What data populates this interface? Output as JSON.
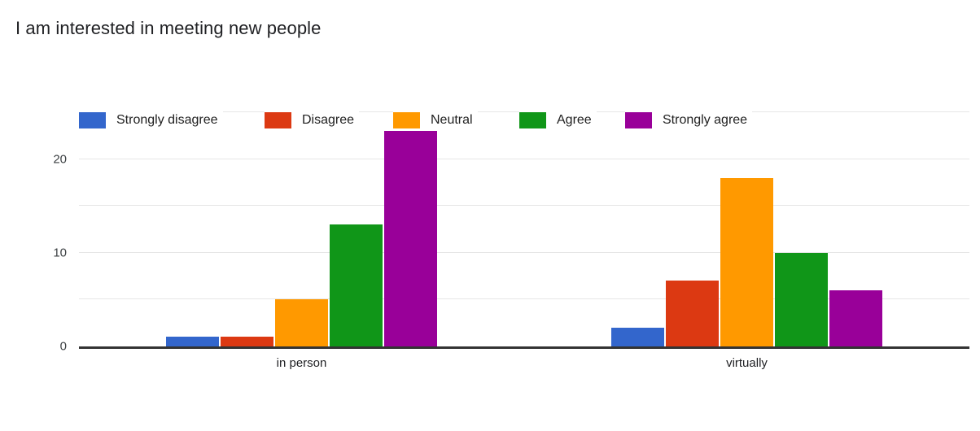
{
  "chart_data": {
    "type": "bar",
    "title": "I am interested in meeting new people",
    "categories": [
      "in person",
      "virtually"
    ],
    "series": [
      {
        "name": "Strongly disagree",
        "color": "#3366cc",
        "values": [
          1,
          2
        ]
      },
      {
        "name": "Disagree",
        "color": "#dc3912",
        "values": [
          1,
          7
        ]
      },
      {
        "name": "Neutral",
        "color": "#ff9900",
        "values": [
          5,
          18
        ]
      },
      {
        "name": "Agree",
        "color": "#109618",
        "values": [
          13,
          10
        ]
      },
      {
        "name": "Strongly agree",
        "color": "#990099",
        "values": [
          23,
          6
        ]
      }
    ],
    "xlabel": "",
    "ylabel": "",
    "ylim": [
      0,
      25
    ],
    "y_ticks": [
      0,
      10,
      20
    ],
    "gridline_values": [
      5,
      10,
      15,
      20,
      25
    ],
    "grid": true,
    "legend_position": "top"
  },
  "colors": {
    "background": "#ffffff",
    "title_text": "#202124",
    "axis_text": "#3c4043",
    "gridline": "#e6e6e6",
    "baseline": "#333333"
  }
}
